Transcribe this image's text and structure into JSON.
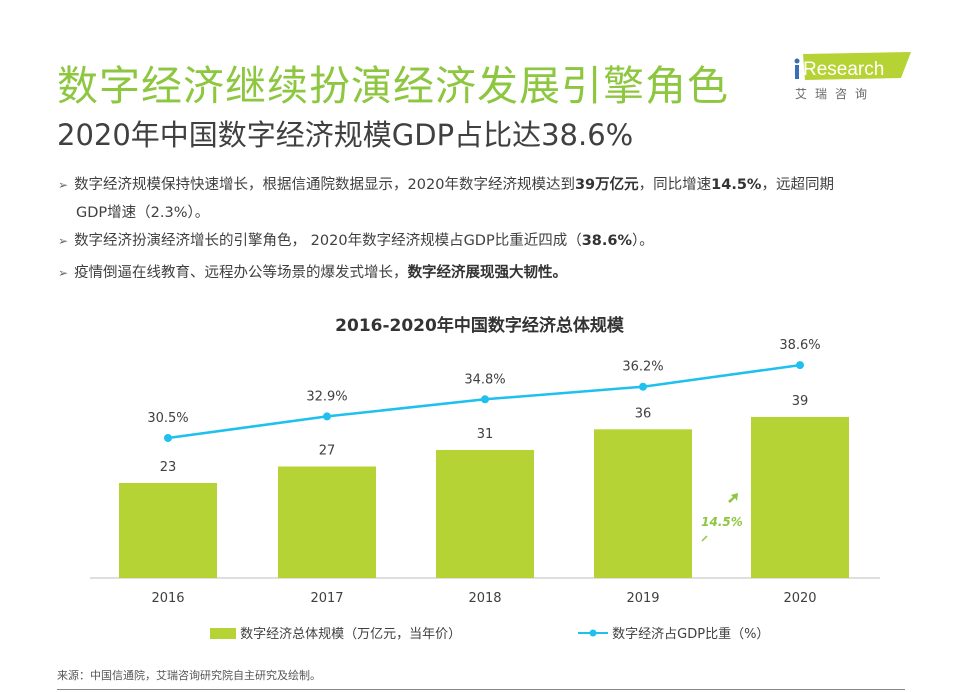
{
  "title": "数字经济继续扮演经济发展引擎角色",
  "subtitle": "2020年中国数字经济规模GDP占比达38.6%",
  "logo": {
    "brand": "iResearch",
    "cn": "艾 瑞 咨 询",
    "color": "#b5d334"
  },
  "bullets": [
    {
      "parts": [
        {
          "t": "数字经济规模保持快速增长，根据信通院数据显示，2020年数字经济规模达到"
        },
        {
          "t": "39万亿元",
          "b": true
        },
        {
          "t": "，同比增速"
        },
        {
          "t": "14.5%",
          "b": true
        },
        {
          "t": "，远超同期"
        }
      ],
      "cont": "GDP增速（2.3%）。"
    },
    {
      "parts": [
        {
          "t": "数字经济扮演经济增长的引擎角色， 2020年数字经济规模占GDP比重近四成（"
        },
        {
          "t": "38.6%",
          "b": true
        },
        {
          "t": "）。"
        }
      ]
    },
    {
      "parts": [
        {
          "t": "疫情倒逼在线教育、远程办公等场景的爆发式增长，"
        },
        {
          "t": "数字经济展现强大韧性。",
          "b": true
        }
      ]
    }
  ],
  "chart_data": {
    "type": "bar+line",
    "title": "2016-2020年中国数字经济总体规模",
    "categories": [
      "2016",
      "2017",
      "2018",
      "2019",
      "2020"
    ],
    "series": [
      {
        "name": "数字经济总体规模（万亿元，当年价）",
        "type": "bar",
        "values": [
          23,
          27,
          31,
          36,
          39
        ],
        "labels": [
          "23",
          "27",
          "31",
          "36",
          "39"
        ],
        "color": "#b5d334"
      },
      {
        "name": "数字经济占GDP比重（%）",
        "type": "line",
        "values": [
          30.5,
          32.9,
          34.8,
          36.2,
          38.6
        ],
        "labels": [
          "30.5%",
          "32.9%",
          "34.8%",
          "36.2%",
          "38.6%"
        ],
        "color": "#1ec0ee"
      }
    ],
    "annotation": {
      "text": "14.5%",
      "color": "#8dc63f"
    },
    "legend": "bottom",
    "grid": false
  },
  "source": "来源：中国信通院，艾瑞咨询研究院自主研究及绘制。"
}
